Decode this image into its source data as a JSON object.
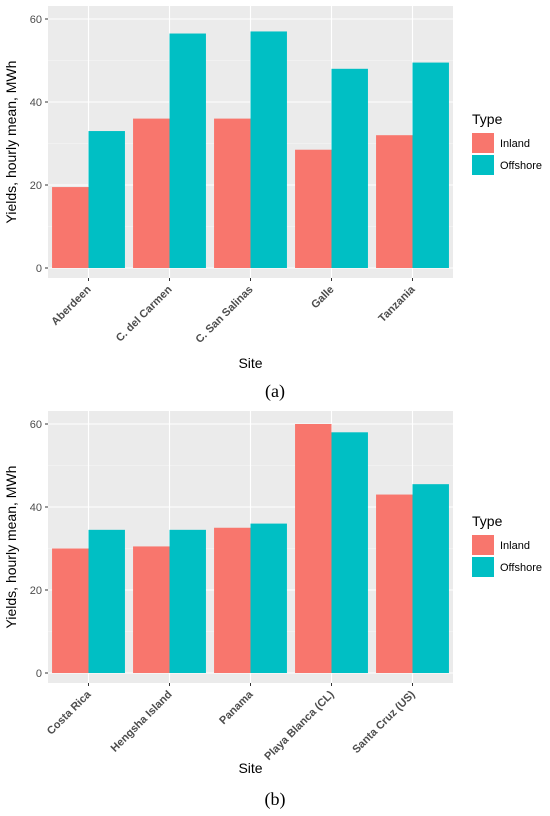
{
  "chart_data": [
    {
      "type": "bar",
      "panel_label": "(a)",
      "xlabel": "Site",
      "ylabel": "Yields, hourly mean, MWh",
      "ylim": [
        0,
        62
      ],
      "yticks": [
        0,
        20,
        40,
        60
      ],
      "grid": true,
      "legend_position": "right",
      "legend_title": "Type",
      "categories": [
        "Aberdeen",
        "C. del Carmen",
        "C. San Salinas",
        "Galle",
        "Tanzania"
      ],
      "series": [
        {
          "name": "Inland",
          "color": "#F8766D",
          "values": [
            19.5,
            36,
            36,
            28.5,
            32
          ]
        },
        {
          "name": "Offshore",
          "color": "#00BFC4",
          "values": [
            33,
            56.5,
            57,
            48,
            49.5
          ]
        }
      ]
    },
    {
      "type": "bar",
      "panel_label": "(b)",
      "xlabel": "Site",
      "ylabel": "Yields, hourly mean, MWh",
      "ylim": [
        0,
        62
      ],
      "yticks": [
        0,
        20,
        40,
        60
      ],
      "grid": true,
      "legend_position": "right",
      "legend_title": "Type",
      "categories": [
        "Costa Rica",
        "Hengsha Island",
        "Panama",
        "Playa Blanca (CL)",
        "Santa Cruz (US)"
      ],
      "series": [
        {
          "name": "Inland",
          "color": "#F8766D",
          "values": [
            30,
            30.5,
            35,
            60,
            43
          ]
        },
        {
          "name": "Offshore",
          "color": "#00BFC4",
          "values": [
            34.5,
            34.5,
            36,
            58,
            45.5
          ]
        }
      ]
    }
  ]
}
